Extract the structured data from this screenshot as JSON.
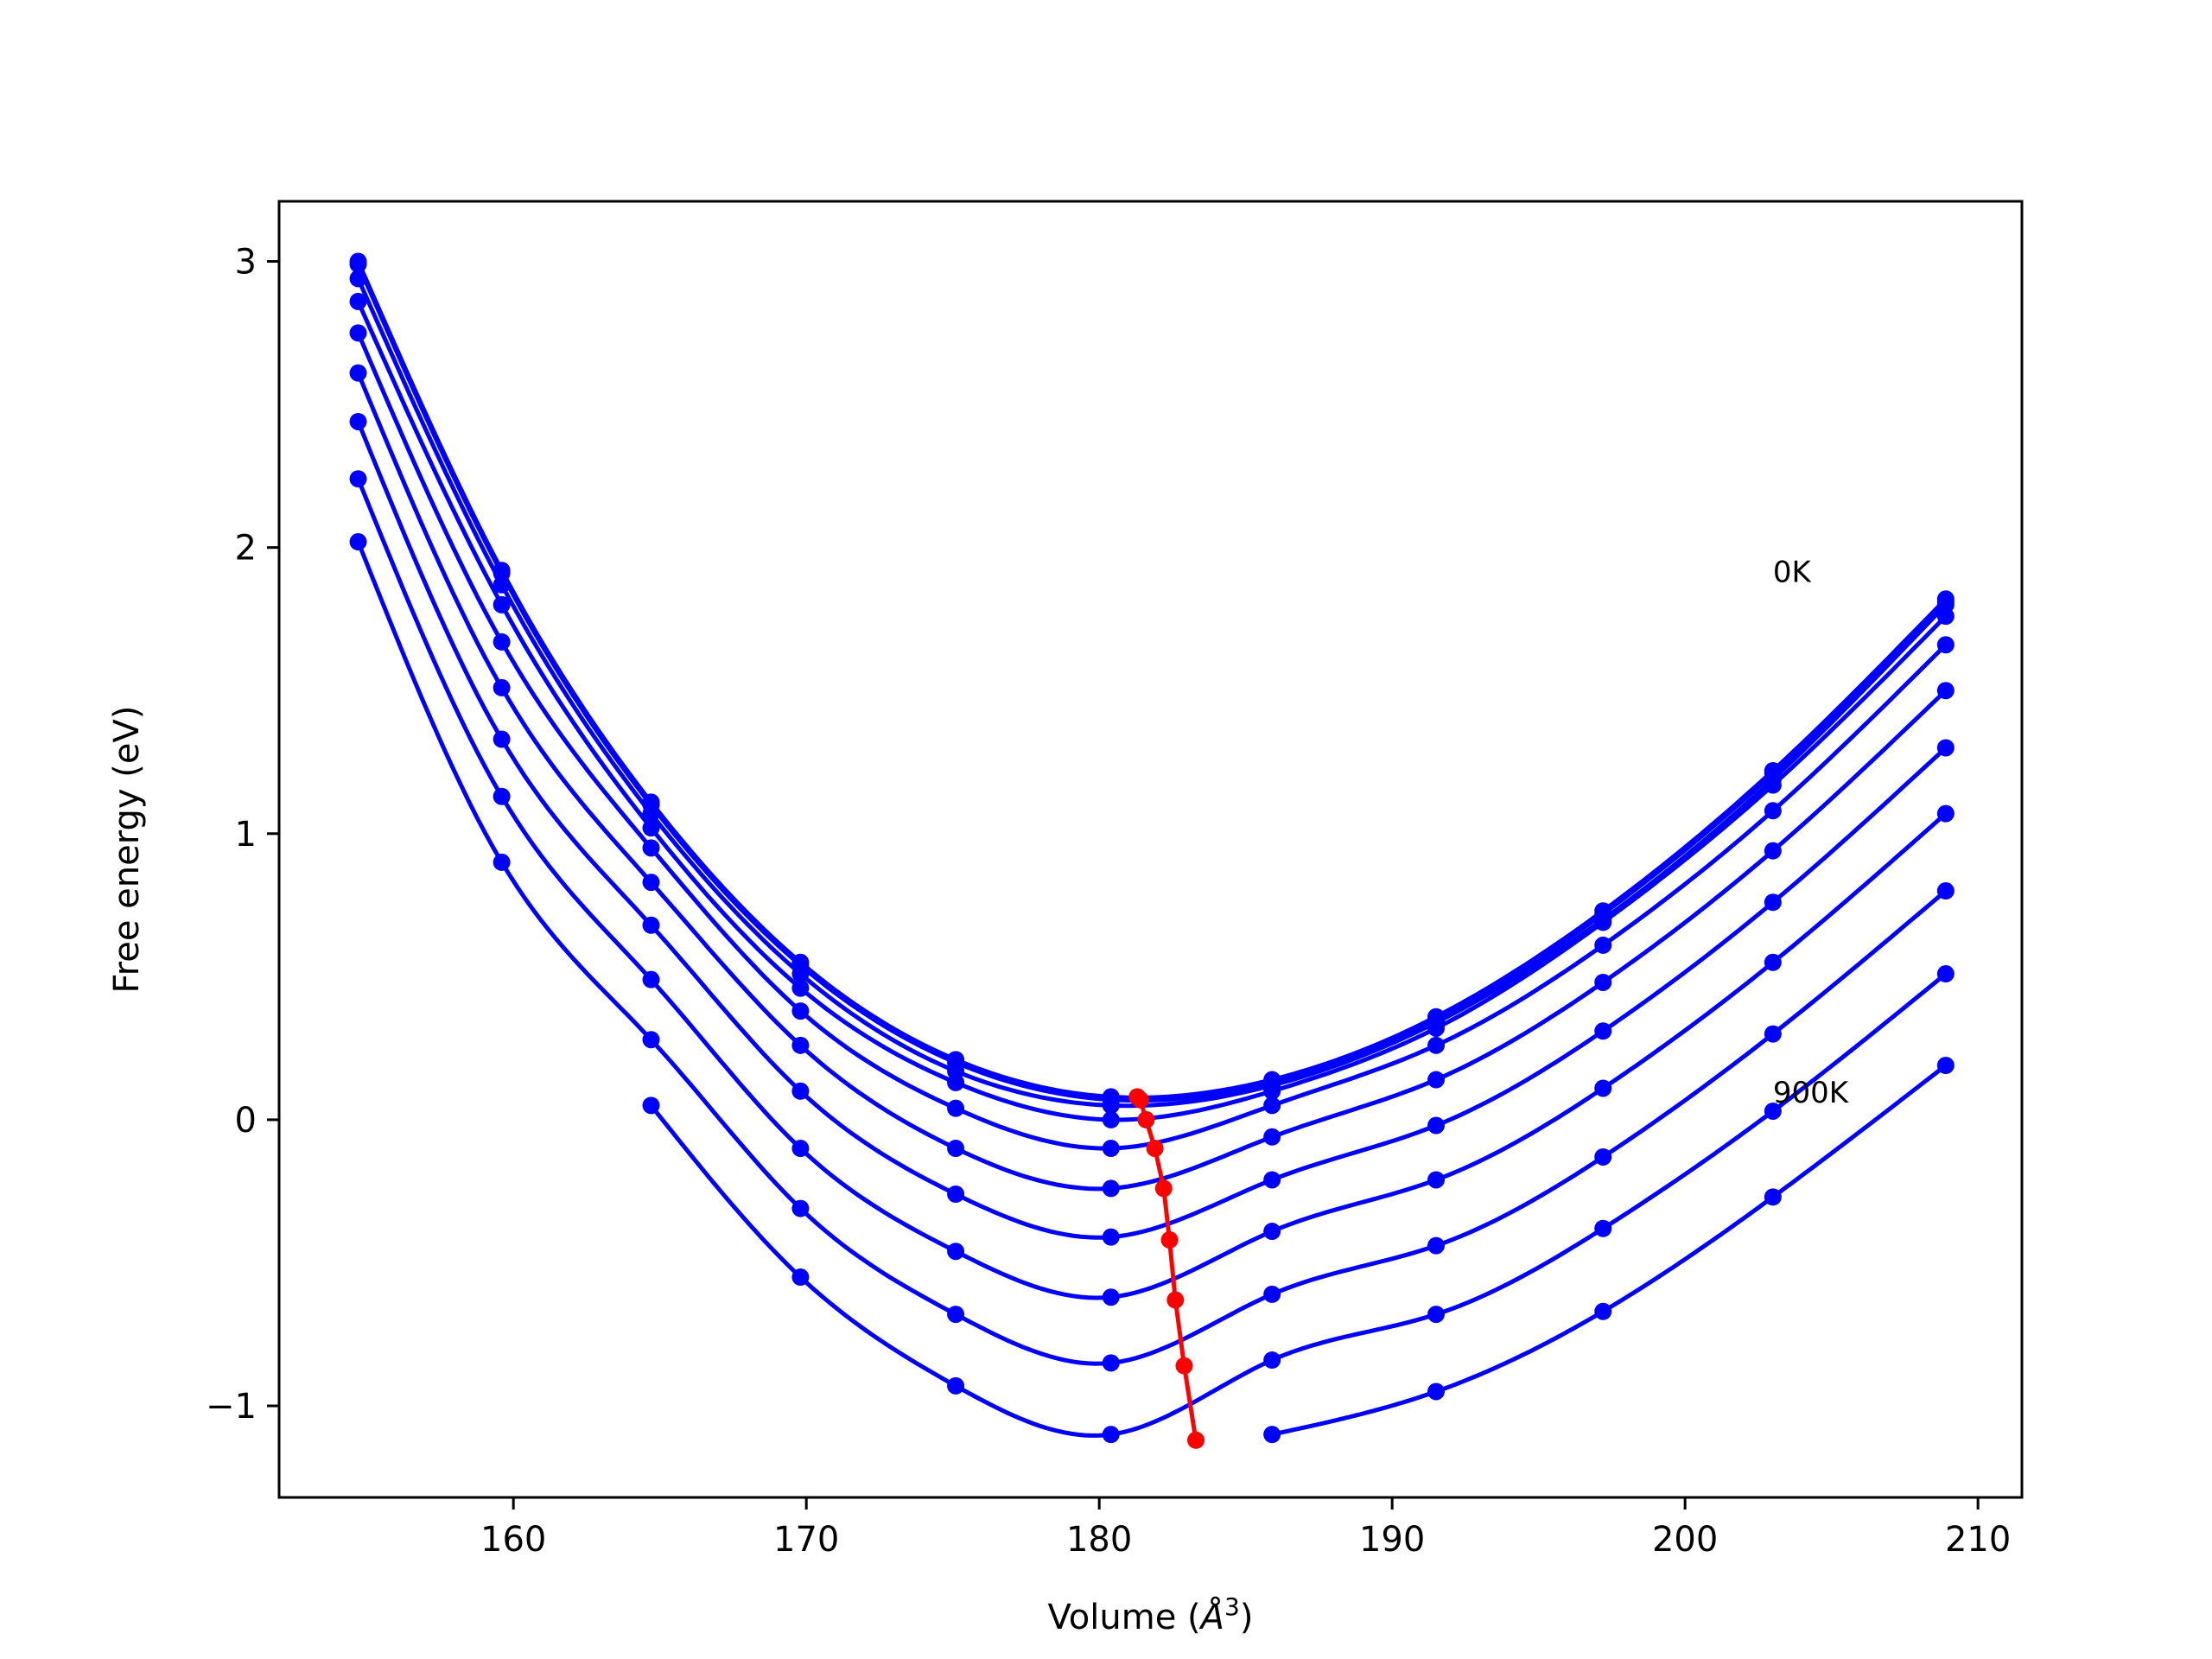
{
  "chart_data": {
    "type": "line",
    "xlabel": "Volume (",
    "xlabel_unit": "Å",
    "xlabel_exp": "3",
    "xlabel_close": ")",
    "ylabel": "Free energy (eV)",
    "xlim": [
      152,
      211.5
    ],
    "ylim": [
      -1.32,
      3.21
    ],
    "xticks": [
      160,
      170,
      180,
      190,
      200,
      210
    ],
    "yticks": [
      -1,
      0,
      1,
      2,
      3
    ],
    "ytick_labels": [
      "−1",
      "0",
      "1",
      "2",
      "3"
    ],
    "grid": false,
    "colors": {
      "curves": "#0000ff",
      "minima": "#ff0000"
    },
    "x": [
      154.7,
      159.6,
      164.7,
      169.8,
      175.1,
      180.4,
      185.9,
      191.5,
      197.2,
      203.0,
      208.9
    ],
    "series": [
      {
        "values": [
          3.0,
          1.92,
          1.11,
          0.55,
          0.21,
          0.08,
          0.14,
          0.36,
          0.73,
          1.22,
          1.82
        ]
      },
      {
        "values": [
          2.99,
          1.91,
          1.1,
          0.54,
          0.2,
          0.07,
          0.13,
          0.35,
          0.72,
          1.21,
          1.81
        ]
      },
      {
        "values": [
          2.94,
          1.87,
          1.07,
          0.51,
          0.17,
          0.05,
          0.12,
          0.34,
          0.7,
          1.19,
          1.8
        ]
      },
      {
        "values": [
          2.86,
          1.8,
          1.02,
          0.46,
          0.13,
          0.0,
          0.1,
          0.32,
          0.69,
          1.17,
          1.76
        ]
      },
      {
        "values": [
          2.75,
          1.67,
          0.95,
          0.38,
          0.04,
          -0.1,
          0.05,
          0.26,
          0.61,
          1.08,
          1.66
        ]
      },
      {
        "values": [
          2.61,
          1.51,
          0.83,
          0.26,
          -0.1,
          -0.24,
          -0.06,
          0.14,
          0.48,
          0.94,
          1.5
        ]
      },
      {
        "values": [
          2.44,
          1.33,
          0.68,
          0.1,
          -0.26,
          -0.41,
          -0.21,
          -0.02,
          0.31,
          0.76,
          1.3
        ]
      },
      {
        "values": [
          2.24,
          1.13,
          0.49,
          -0.1,
          -0.46,
          -0.62,
          -0.39,
          -0.21,
          0.11,
          0.55,
          1.07
        ]
      },
      {
        "values": [
          2.02,
          0.9,
          0.28,
          -0.31,
          -0.68,
          -0.85,
          -0.61,
          -0.44,
          -0.13,
          0.3,
          0.8
        ]
      },
      {
        "values": [
          null,
          null,
          0.05,
          -0.55,
          -0.93,
          -1.1,
          -0.84,
          -0.68,
          -0.38,
          0.03,
          0.51
        ]
      },
      {
        "values": [
          null,
          null,
          null,
          null,
          null,
          null,
          -1.1,
          -0.95,
          -0.67,
          -0.27,
          0.19
        ]
      }
    ],
    "minima": {
      "x": [
        181.3,
        181.4,
        181.6,
        181.9,
        182.2,
        182.4,
        182.6,
        182.9,
        183.3
      ],
      "y": [
        0.08,
        0.07,
        0.0,
        -0.1,
        -0.24,
        -0.42,
        -0.63,
        -0.86,
        -1.12
      ]
    },
    "annotations": [
      {
        "text": "0K",
        "x": 203.0,
        "y": 1.88
      },
      {
        "text": "900K",
        "x": 203.0,
        "y": 0.06
      }
    ]
  }
}
